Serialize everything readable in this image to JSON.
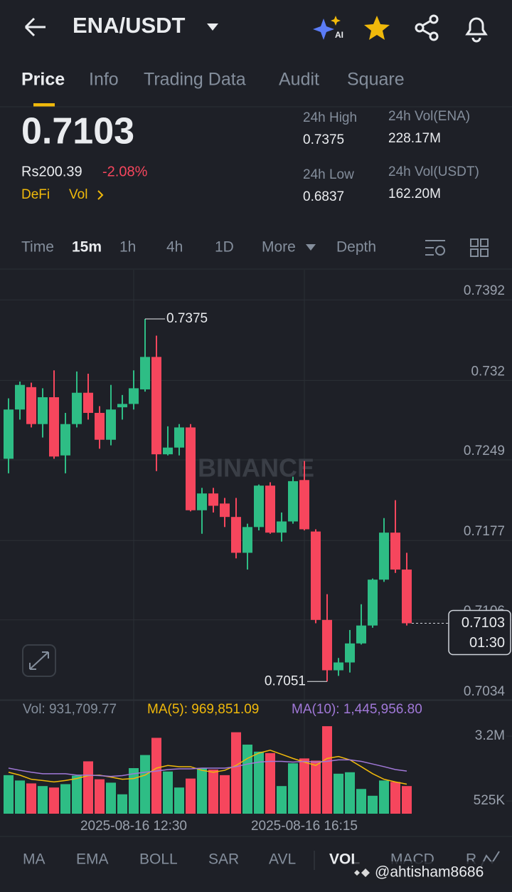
{
  "header": {
    "title": "ENA/USDT"
  },
  "tabs": [
    "Price",
    "Info",
    "Trading Data",
    "Audit",
    "Square"
  ],
  "price": {
    "last": "0.7103",
    "local": "Rs200.39",
    "change": "-2.08%",
    "tags": [
      "DeFi",
      "Vol"
    ]
  },
  "stats": [
    {
      "label": "24h High",
      "value": "0.7375"
    },
    {
      "label": "24h Vol(ENA)",
      "value": "228.17M"
    },
    {
      "label": "24h Low",
      "value": "0.6837"
    },
    {
      "label": "24h Vol(USDT)",
      "value": "162.20M"
    }
  ],
  "intervals": [
    "Time",
    "15m",
    "1h",
    "4h",
    "1D",
    "More",
    "Depth"
  ],
  "chart_data": {
    "type": "candlestick",
    "watermark": "BINANCE",
    "categories": [
      null,
      null,
      null,
      null,
      null,
      null,
      null,
      null,
      null,
      null,
      null,
      "2025-08-16 12:30",
      null,
      null,
      null,
      null,
      null,
      null,
      null,
      null,
      null,
      null,
      null,
      null,
      null,
      null,
      "2025-08-16 16:15",
      null,
      null,
      null,
      null,
      null,
      null,
      null,
      null,
      null
    ],
    "open": [
      0.725,
      0.7294,
      0.7314,
      0.7281,
      0.7305,
      0.7253,
      0.7281,
      0.7309,
      0.7291,
      0.7267,
      0.7296,
      0.7299,
      0.7312,
      0.7341,
      0.7254,
      0.726,
      0.7278,
      0.7204,
      0.7219,
      0.721,
      0.7198,
      0.7166,
      0.7189,
      0.7226,
      0.7184,
      0.7194,
      0.7231,
      0.7185,
      0.7106,
      0.7061,
      0.7068,
      0.7085,
      0.7101,
      0.7142,
      0.7184,
      0.7151
    ],
    "high": [
      0.7304,
      0.7319,
      0.7318,
      0.7313,
      0.7329,
      0.7291,
      0.7328,
      0.7326,
      0.7297,
      0.7316,
      0.7307,
      0.7329,
      0.7375,
      0.736,
      0.7279,
      0.7281,
      0.7281,
      0.7224,
      0.7224,
      0.7215,
      0.7215,
      0.7192,
      0.7227,
      0.7229,
      0.7202,
      0.7234,
      0.7248,
      0.7187,
      0.7129,
      0.7072,
      0.7097,
      0.712,
      0.7143,
      0.7197,
      0.7213,
      0.7166
    ],
    "low": [
      0.7237,
      0.7285,
      0.7278,
      0.7269,
      0.725,
      0.7237,
      0.7278,
      0.7285,
      0.7259,
      0.7262,
      0.7285,
      0.7294,
      0.731,
      0.7239,
      0.7253,
      0.7253,
      0.7203,
      0.7183,
      0.7202,
      0.7189,
      0.7161,
      0.7151,
      0.7186,
      0.7183,
      0.7176,
      0.7192,
      0.7186,
      0.7103,
      0.7051,
      0.7056,
      0.7059,
      0.7084,
      0.7099,
      0.714,
      0.7148,
      0.7101
    ],
    "close": [
      0.7294,
      0.7316,
      0.7281,
      0.7305,
      0.7252,
      0.7281,
      0.7309,
      0.7291,
      0.7267,
      0.7294,
      0.7299,
      0.7313,
      0.7341,
      0.7254,
      0.726,
      0.7278,
      0.7204,
      0.7219,
      0.7208,
      0.7198,
      0.7166,
      0.7189,
      0.7226,
      0.7184,
      0.7194,
      0.723,
      0.7187,
      0.7106,
      0.7061,
      0.7068,
      0.7085,
      0.7101,
      0.7142,
      0.7184,
      0.7151,
      0.7103
    ],
    "up_color": "#2ebd85",
    "down_color": "#f6465d",
    "ylim": [
      0.702,
      0.742
    ],
    "yticks": [
      0.7392,
      0.732,
      0.7249,
      0.7177,
      0.7106,
      0.7034
    ],
    "high_label": "0.7375",
    "low_label": "0.7051",
    "last_label": "0.7103",
    "countdown": "01:30",
    "volume": [
      1590000,
      1370000,
      1250000,
      1140000,
      1080000,
      1220000,
      1570000,
      2160000,
      1420000,
      1280000,
      800000,
      1880000,
      2420000,
      3130000,
      1740000,
      1080000,
      1450000,
      1880000,
      1820000,
      1590000,
      3360000,
      2850000,
      2560000,
      2500000,
      1140000,
      2080000,
      2280000,
      2190000,
      3610000,
      1650000,
      1710000,
      1020000,
      740000,
      1370000,
      1310000,
      1140000
    ],
    "ma5": [
      1710000,
      1590000,
      1420000,
      1370000,
      1310000,
      1370000,
      1450000,
      1570000,
      1590000,
      1510000,
      1420000,
      1450000,
      1590000,
      1880000,
      1990000,
      1940000,
      1940000,
      1790000,
      1710000,
      1790000,
      1990000,
      2280000,
      2500000,
      2620000,
      2450000,
      2280000,
      2130000,
      1990000,
      2280000,
      2360000,
      2220000,
      1940000,
      1650000,
      1420000,
      1310000,
      1220000
    ],
    "ma10": [
      1880000,
      1790000,
      1710000,
      1650000,
      1650000,
      1650000,
      1590000,
      1590000,
      1570000,
      1540000,
      1570000,
      1650000,
      1710000,
      1760000,
      1820000,
      1850000,
      1850000,
      1880000,
      1880000,
      1880000,
      1940000,
      2050000,
      2130000,
      2160000,
      2160000,
      2130000,
      2160000,
      2130000,
      2160000,
      2220000,
      2220000,
      2160000,
      2050000,
      1940000,
      1820000,
      1760000
    ],
    "ma5_color": "#f0b90b",
    "ma10_color": "#a178d8",
    "y2lim": [
      0,
      4200000
    ],
    "y2ticks": [
      {
        "value": 3200000,
        "label": "3.2M"
      },
      {
        "value": 525000,
        "label": "525K"
      }
    ],
    "volume_legend": [
      "Vol: 931,709.77",
      "MA(5): 969,851.09",
      "MA(10): 1,445,956.80"
    ]
  },
  "indicators": [
    "MA",
    "EMA",
    "BOLL",
    "SAR",
    "AVL",
    "VOL",
    "MACD",
    "R"
  ],
  "watermark": "@ahtisham8686"
}
